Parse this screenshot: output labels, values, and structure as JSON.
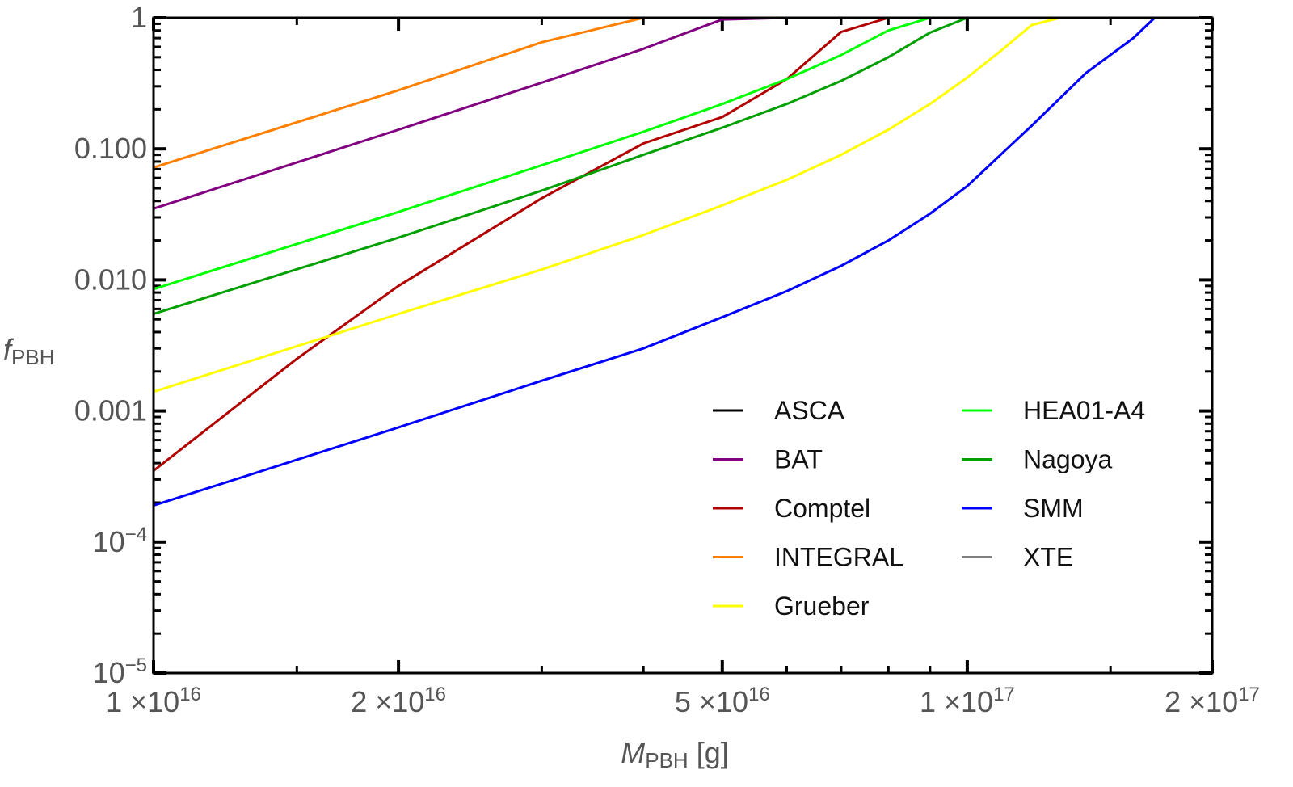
{
  "chart_data": {
    "type": "line",
    "title": "",
    "xlabel": {
      "main": "M",
      "sub": "PBH",
      "unit": " [g]"
    },
    "ylabel": {
      "main": "f",
      "sub": "PBH"
    },
    "xscale": "log",
    "yscale": "log",
    "xlim": [
      1e+16,
      2e+17
    ],
    "ylim": [
      1e-05,
      1
    ],
    "x_ticks": [
      {
        "value": 1e+16,
        "mant": "1",
        "exp": "16"
      },
      {
        "value": 2e+16,
        "mant": "2",
        "exp": "16"
      },
      {
        "value": 5e+16,
        "mant": "5",
        "exp": "16"
      },
      {
        "value": 1e+17,
        "mant": "1",
        "exp": "17"
      },
      {
        "value": 2e+17,
        "mant": "2",
        "exp": "17"
      }
    ],
    "x_times_symbol": "×10",
    "y_ticks": [
      {
        "value": 1,
        "text": "1"
      },
      {
        "value": 0.1,
        "text": "0.100"
      },
      {
        "value": 0.01,
        "text": "0.010"
      },
      {
        "value": 0.001,
        "text": "0.001"
      },
      {
        "value": 0.0001,
        "base": "10",
        "exp": "−4"
      },
      {
        "value": 1e-05,
        "base": "10",
        "exp": "−5"
      }
    ],
    "legend_position": "bottom-right",
    "series": [
      {
        "name": "ASCA",
        "color": "#000000",
        "x": [],
        "y": []
      },
      {
        "name": "BAT",
        "color": "#800080",
        "x": [
          1e+16,
          2e+16,
          3e+16,
          4e+16,
          5e+16,
          6e+16
        ],
        "y": [
          0.035,
          0.14,
          0.32,
          0.58,
          0.97,
          1.0
        ]
      },
      {
        "name": "Comptel",
        "color": "#b00000",
        "x": [
          1e+16,
          1.5e+16,
          2e+16,
          3e+16,
          4e+16,
          5e+16,
          6e+16,
          7e+16,
          8e+16
        ],
        "y": [
          0.00035,
          0.0025,
          0.009,
          0.042,
          0.11,
          0.175,
          0.34,
          0.78,
          1.0
        ]
      },
      {
        "name": "INTEGRAL",
        "color": "#ff8000",
        "x": [
          1e+16,
          2e+16,
          3e+16,
          4e+16
        ],
        "y": [
          0.072,
          0.28,
          0.65,
          1.0
        ]
      },
      {
        "name": "Grueber",
        "color": "#ffff00",
        "x": [
          1e+16,
          2e+16,
          3e+16,
          4e+16,
          5e+16,
          6e+16,
          7e+16,
          8e+16,
          9e+16,
          1e+17,
          1.1e+17,
          1.2e+17,
          1.3e+17
        ],
        "y": [
          0.0014,
          0.0055,
          0.012,
          0.022,
          0.037,
          0.058,
          0.09,
          0.14,
          0.22,
          0.35,
          0.56,
          0.88,
          1.0
        ]
      },
      {
        "name": "HEA01-A4",
        "color": "#00ff00",
        "x": [
          1e+16,
          2e+16,
          3e+16,
          4e+16,
          5e+16,
          6e+16,
          7e+16,
          8e+16,
          9e+16
        ],
        "y": [
          0.0085,
          0.033,
          0.075,
          0.135,
          0.22,
          0.34,
          0.52,
          0.8,
          1.0
        ]
      },
      {
        "name": "Nagoya",
        "color": "#00a000",
        "x": [
          1e+16,
          2e+16,
          3e+16,
          4e+16,
          5e+16,
          6e+16,
          7e+16,
          8e+16,
          9e+16,
          1e+17
        ],
        "y": [
          0.0055,
          0.021,
          0.048,
          0.09,
          0.145,
          0.22,
          0.33,
          0.5,
          0.77,
          1.0
        ]
      },
      {
        "name": "SMM",
        "color": "#0000ff",
        "x": [
          1e+16,
          2e+16,
          3e+16,
          4e+16,
          5e+16,
          6e+16,
          7e+16,
          8e+16,
          9e+16,
          1e+17,
          1.2e+17,
          1.4e+17,
          1.6e+17,
          1.7e+17
        ],
        "y": [
          0.00019,
          0.00075,
          0.0017,
          0.003,
          0.0052,
          0.0082,
          0.0128,
          0.02,
          0.032,
          0.052,
          0.15,
          0.38,
          0.7,
          1.0
        ]
      },
      {
        "name": "XTE",
        "color": "#808080",
        "x": [],
        "y": []
      }
    ]
  }
}
